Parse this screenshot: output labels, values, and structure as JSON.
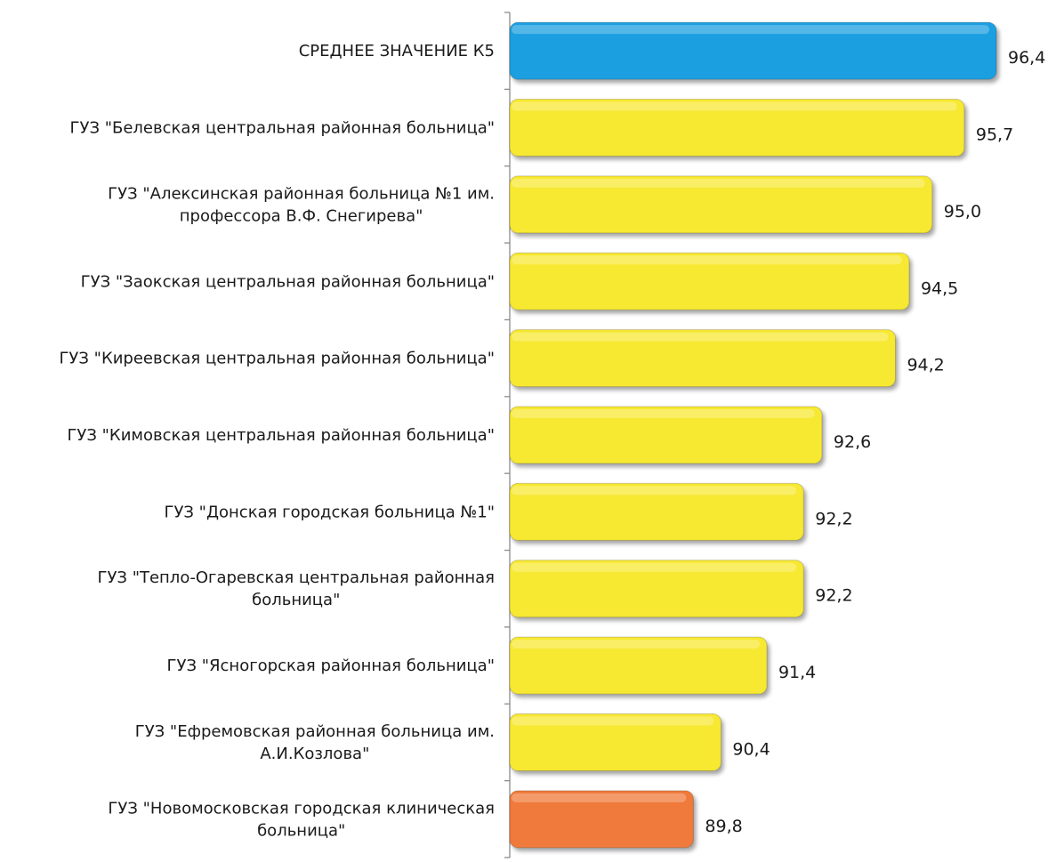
{
  "chart_data": {
    "type": "bar",
    "orientation": "horizontal",
    "title": "",
    "xlabel": "",
    "ylabel": "",
    "categories": [
      [
        "СРЕДНЕЕ ЗНАЧЕНИЕ К5"
      ],
      [
        "ГУЗ \"Белевская центральная районная больница\""
      ],
      [
        "ГУЗ \"Алексинская районная больница №1 им.",
        "профессора В.Ф. Снегирева\""
      ],
      [
        "ГУЗ \"Заокская центральная районная больница\""
      ],
      [
        "ГУЗ \"Киреевская центральная районная больница\""
      ],
      [
        "ГУЗ \"Кимовская центральная районная больница\""
      ],
      [
        "ГУЗ \"Донская городская больница №1\""
      ],
      [
        "ГУЗ \"Тепло-Огаревская центральная районная",
        "больница\""
      ],
      [
        "ГУЗ \"Ясногорская районная больница\""
      ],
      [
        "ГУЗ \"Ефремовская районная больница им.",
        "А.И.Козлова\""
      ],
      [
        "ГУЗ \"Новомосковская городская клиническая",
        "больница\""
      ]
    ],
    "values": [
      96.4,
      95.7,
      95.0,
      94.5,
      94.2,
      92.6,
      92.2,
      92.2,
      91.4,
      90.4,
      89.8
    ],
    "value_labels": [
      "96,4",
      "95,7",
      "95,0",
      "94,5",
      "94,2",
      "92,6",
      "92,2",
      "92,2",
      "91,4",
      "90,4",
      "89,8"
    ],
    "bar_colors": [
      "#1e9fe0",
      "#f7e830",
      "#f7e830",
      "#f7e830",
      "#f7e830",
      "#f7e830",
      "#f7e830",
      "#f7e830",
      "#f7e830",
      "#f7e830",
      "#f07a3a"
    ],
    "xlim": [
      85.8,
      96.4
    ],
    "grid": false,
    "legend": "none"
  }
}
